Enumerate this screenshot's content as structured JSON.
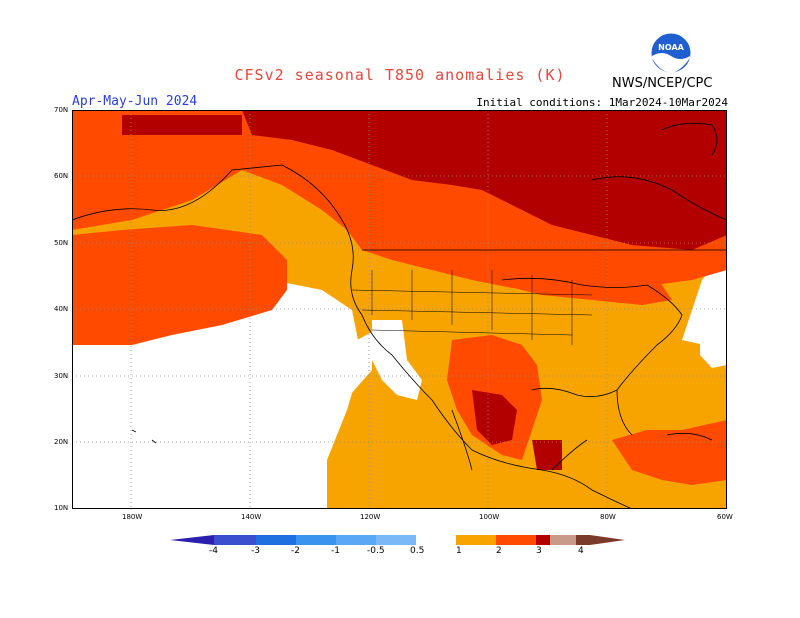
{
  "header": {
    "title": "CFSv2 seasonal T850 anomalies (K)",
    "season": "Apr-May-Jun 2024",
    "initial_conditions": "Initial conditions: 1Mar2024-10Mar2024",
    "agency": "NWS/NCEP/CPC",
    "logo_text": "NOAA"
  },
  "axes": {
    "lat_labels": [
      "70N",
      "60N",
      "50N",
      "40N",
      "30N",
      "20N",
      "10N"
    ],
    "lon_labels": [
      "180W",
      "140W",
      "120W",
      "100W",
      "80W",
      "60W"
    ]
  },
  "colorbar": {
    "tick_labels": [
      "-4",
      "-3",
      "-2",
      "-1",
      "-0.5",
      "0.5",
      "1",
      "2",
      "3",
      "4"
    ],
    "colors": [
      "#2b1fb0",
      "#3a4fd0",
      "#1f6fe0",
      "#3b93f0",
      "#7ab8f8",
      "#ffffff",
      "#f7a400",
      "#ff4a00",
      "#b20000",
      "#c89a8a",
      "#7a3b2b"
    ]
  },
  "legend_colors": {
    "0.5-1": "#f7a400",
    "1-2": "#ff4a00",
    "2-3": "#b20000",
    "neutral": "#ffffff"
  }
}
